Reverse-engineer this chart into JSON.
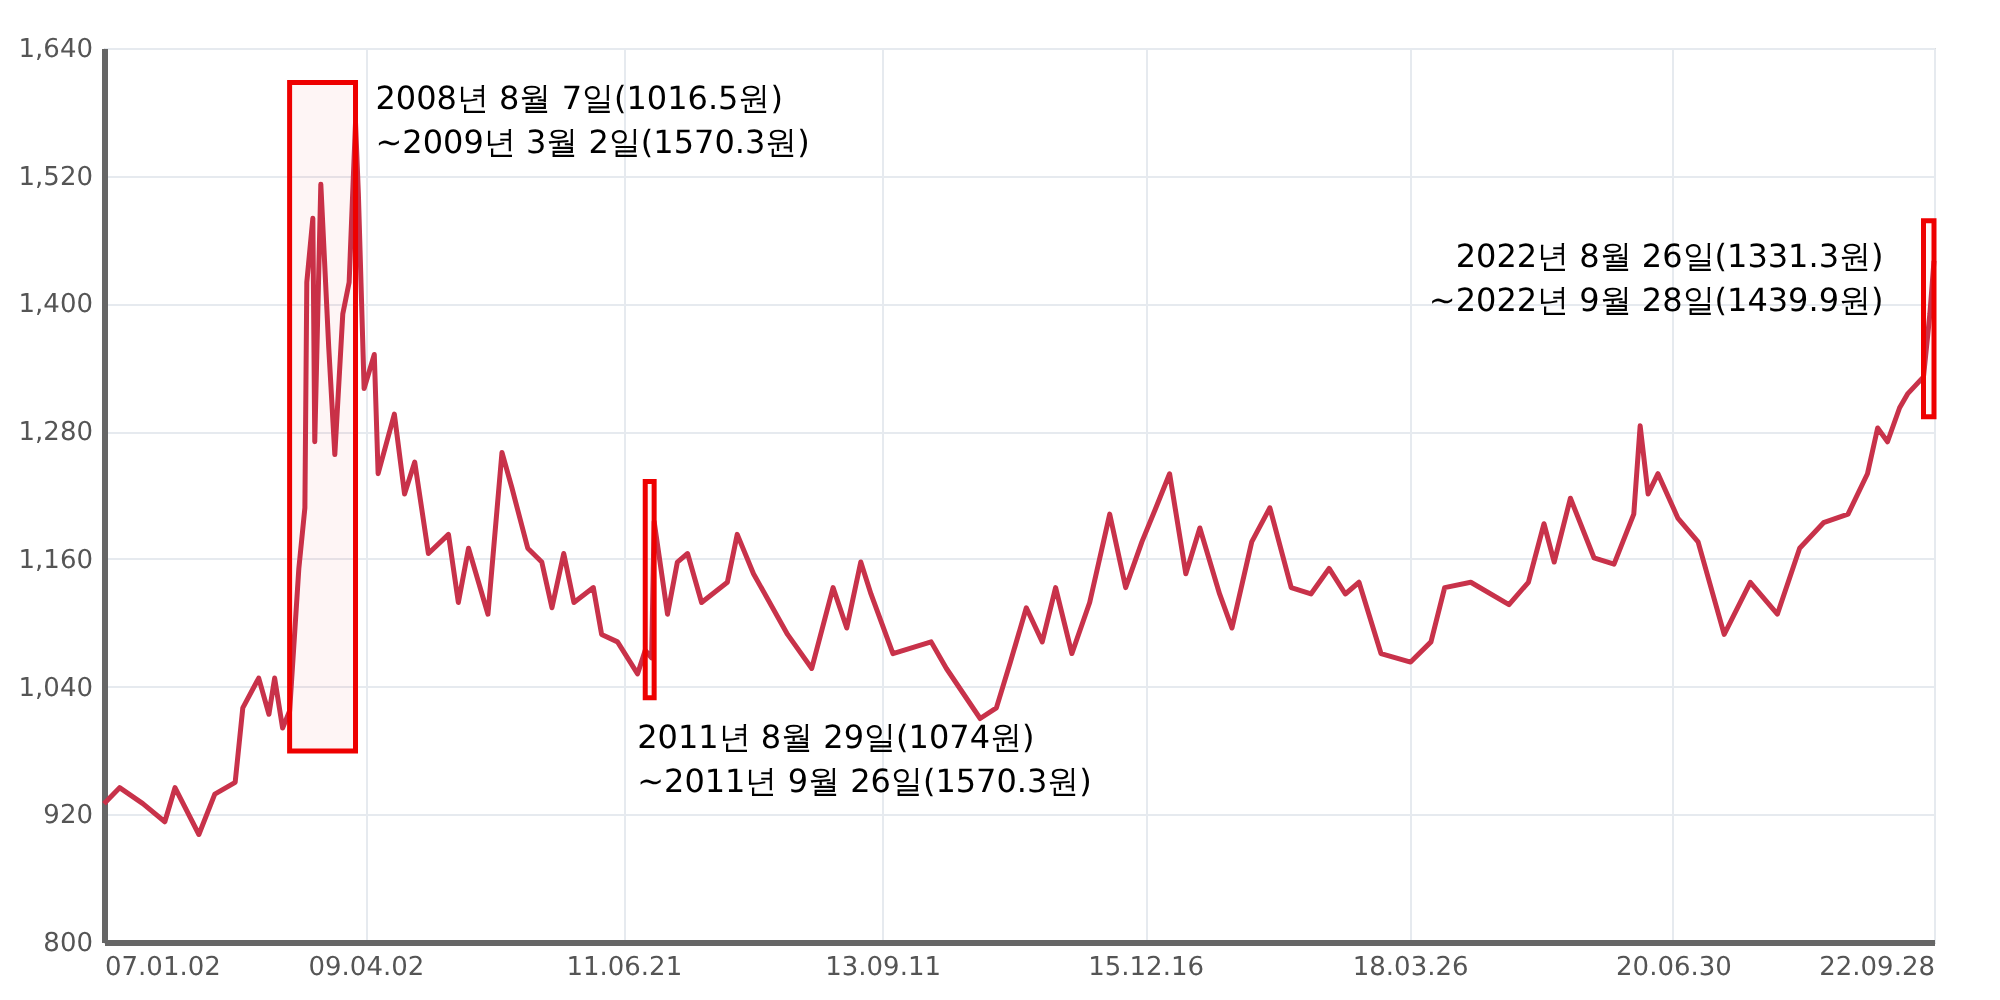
{
  "chart_data": {
    "type": "line",
    "x": [
      "2007-01-02",
      "2007-02-20",
      "2007-05-04",
      "2007-07-12",
      "2007-08-13",
      "2007-10-27",
      "2007-12-16",
      "2008-02-18",
      "2008-03-13",
      "2008-05-02",
      "2008-06-03",
      "2008-06-21",
      "2008-07-16",
      "2008-08-07",
      "2008-09-05",
      "2008-09-24",
      "2008-09-30",
      "2008-10-19",
      "2008-10-25",
      "2008-11-13",
      "2008-12-08",
      "2008-12-27",
      "2009-01-21",
      "2009-02-10",
      "2009-03-02",
      "2009-03-11",
      "2009-03-29",
      "2009-04-30",
      "2009-05-12",
      "2009-07-02",
      "2009-08-03",
      "2009-09-04",
      "2009-10-17",
      "2009-12-19",
      "2010-01-19",
      "2010-02-20",
      "2010-04-22",
      "2010-06-05",
      "2010-07-06",
      "2010-08-25",
      "2010-10-08",
      "2010-11-09",
      "2010-12-16",
      "2011-01-17",
      "2011-03-19",
      "2011-04-14",
      "2011-06-03",
      "2011-08-05",
      "2011-08-29",
      "2011-09-18",
      "2011-09-26",
      "2011-11-07",
      "2011-12-08",
      "2012-01-09",
      "2012-02-22",
      "2012-05-13",
      "2012-06-13",
      "2012-08-03",
      "2012-11-18",
      "2013-02-02",
      "2013-04-10",
      "2013-05-23",
      "2013-07-06",
      "2013-08-07",
      "2013-10-15",
      "2014-02-12",
      "2014-04-01",
      "2014-07-16",
      "2014-09-05",
      "2014-10-19",
      "2014-12-08",
      "2015-01-27",
      "2015-03-10",
      "2015-04-30",
      "2015-06-25",
      "2015-08-27",
      "2015-10-16",
      "2015-12-06",
      "2016-01-19",
      "2016-03-02",
      "2016-04-22",
      "2016-06-05",
      "2016-08-06",
      "2016-09-14",
      "2016-11-15",
      "2017-01-11",
      "2017-03-19",
      "2017-05-20",
      "2017-07-16",
      "2017-09-05",
      "2017-10-18",
      "2017-12-26",
      "2018-03-29",
      "2018-06-01",
      "2018-07-14",
      "2018-10-04",
      "2019-02-01",
      "2019-04-03",
      "2019-05-22",
      "2019-06-23",
      "2019-08-13",
      "2019-10-26",
      "2019-12-28",
      "2020-02-28",
      "2020-03-19",
      "2020-04-13",
      "2020-05-14",
      "2020-07-16",
      "2020-09-17",
      "2020-12-08",
      "2021-02-28",
      "2021-05-24",
      "2021-08-02",
      "2021-10-16",
      "2022-01-01",
      "2022-03-03",
      "2022-04-04",
      "2022-05-05",
      "2022-06-12",
      "2022-07-07",
      "2022-08-26",
      "2022-09-15",
      "2022-09-28"
    ],
    "series": [
      {
        "color": "#c8324a",
        "values": [
          930,
          945,
          930,
          913,
          945,
          901,
          939,
          950,
          1020,
          1048,
          1014,
          1048,
          1001,
          1017,
          1151,
          1208,
          1420,
          1480,
          1270,
          1512,
          1358,
          1258,
          1390,
          1420,
          1570,
          1503,
          1320,
          1352,
          1240,
          1296,
          1221,
          1251,
          1165,
          1183,
          1119,
          1170,
          1108,
          1260,
          1227,
          1170,
          1157,
          1114,
          1165,
          1119,
          1133,
          1089,
          1082,
          1052,
          1074,
          1067,
          1195,
          1108,
          1157,
          1165,
          1119,
          1138,
          1183,
          1146,
          1089,
          1057,
          1133,
          1095,
          1157,
          1127,
          1071,
          1082,
          1057,
          1010,
          1020,
          1063,
          1114,
          1082,
          1133,
          1071,
          1119,
          1202,
          1133,
          1176,
          1208,
          1240,
          1146,
          1189,
          1127,
          1095,
          1176,
          1208,
          1133,
          1127,
          1151,
          1127,
          1138,
          1071,
          1063,
          1082,
          1133,
          1138,
          1117,
          1138,
          1193,
          1157,
          1217,
          1161,
          1155,
          1202,
          1285,
          1221,
          1240,
          1198,
          1176,
          1089,
          1138,
          1108,
          1170,
          1194,
          1202,
          1240,
          1283,
          1270,
          1302,
          1315,
          1331,
          1390,
          1440
        ]
      }
    ],
    "xlim": [
      "2007-01-02",
      "2022-09-28"
    ],
    "xticks": [
      {
        "value": "2007-01-02",
        "label": "07.01.02"
      },
      {
        "value": "2009-04-02",
        "label": "09.04.02"
      },
      {
        "value": "2011-06-21",
        "label": "11.06.21"
      },
      {
        "value": "2013-09-11",
        "label": "13.09.11"
      },
      {
        "value": "2015-12-16",
        "label": "15.12.16"
      },
      {
        "value": "2018-03-26",
        "label": "18.03.26"
      },
      {
        "value": "2020-06-30",
        "label": "20.06.30"
      },
      {
        "value": "2022-09-28",
        "label": "22.09.28"
      }
    ],
    "ylim": [
      800,
      1640
    ],
    "yticks": [
      {
        "value": 800,
        "label": "800"
      },
      {
        "value": 920,
        "label": "920"
      },
      {
        "value": 1040,
        "label": "1,040"
      },
      {
        "value": 1160,
        "label": "1,160"
      },
      {
        "value": 1280,
        "label": "1,280"
      },
      {
        "value": 1400,
        "label": "1,400"
      },
      {
        "value": 1520,
        "label": "1,520"
      },
      {
        "value": 1640,
        "label": "1,640"
      }
    ],
    "grid": true,
    "bands": [
      {
        "axis": "x",
        "from": "2008-08-07",
        "to": "2009-03-02",
        "label": "2008년 8월 7일(1016.5원)\n~2009년 3월 2일(1570.3원)",
        "color": "#ee0000"
      },
      {
        "axis": "x",
        "from": "2011-08-29",
        "to": "2011-09-26",
        "label": "2011년 8월 29일(1074원)\n~2011년 9월 26일(1570.3원)",
        "color": "#ee0000"
      },
      {
        "axis": "x",
        "from": "2022-08-26",
        "to": "2022-09-28",
        "label": "2022년 8월 26일(1331.3원)\n~2022년 9월 28일(1439.9원)",
        "color": "#ee0000"
      }
    ]
  }
}
